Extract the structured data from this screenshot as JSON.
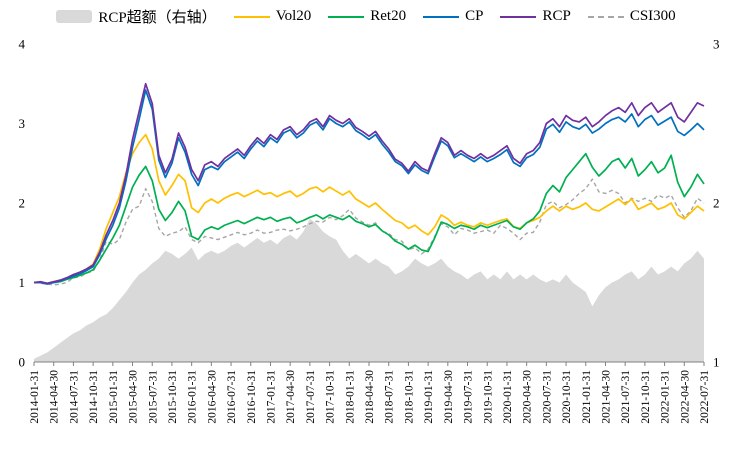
{
  "chart_data": {
    "type": "line",
    "title": "",
    "legend_position": "top",
    "n_points": 103,
    "tick_every": 3,
    "x_ticks": [
      "2014-01-31",
      "2014-04-30",
      "2014-07-31",
      "2014-10-31",
      "2015-01-31",
      "2015-04-30",
      "2015-07-31",
      "2015-10-31",
      "2016-01-31",
      "2016-04-30",
      "2016-07-31",
      "2016-10-31",
      "2017-01-31",
      "2017-04-30",
      "2017-07-31",
      "2017-10-31",
      "2018-01-31",
      "2018-04-30",
      "2018-07-31",
      "2018-10-31",
      "2019-01-31",
      "2019-04-30",
      "2019-07-31",
      "2019-10-31",
      "2020-01-31",
      "2020-04-30",
      "2020-07-31",
      "2020-10-31",
      "2021-01-31",
      "2021-04-30",
      "2021-07-31",
      "2021-10-31",
      "2022-01-31",
      "2022-04-30",
      "2022-07-31"
    ],
    "axes": {
      "left": {
        "min": 0,
        "max": 4,
        "ticks": [
          0,
          1,
          2,
          3,
          4
        ]
      },
      "right": {
        "min": 1,
        "max": 3,
        "ticks": [
          1,
          2,
          3
        ]
      }
    },
    "legend_order": [
      0,
      2,
      3,
      4,
      5,
      1
    ],
    "series": [
      {
        "name": "RCP超额（右轴）",
        "type": "area",
        "axis": "right",
        "color": "#D9D9D9",
        "values": [
          1.02,
          1.04,
          1.06,
          1.09,
          1.12,
          1.15,
          1.18,
          1.2,
          1.23,
          1.25,
          1.28,
          1.3,
          1.34,
          1.39,
          1.44,
          1.5,
          1.55,
          1.58,
          1.62,
          1.65,
          1.7,
          1.68,
          1.65,
          1.68,
          1.72,
          1.64,
          1.68,
          1.7,
          1.68,
          1.7,
          1.73,
          1.75,
          1.72,
          1.75,
          1.78,
          1.75,
          1.77,
          1.74,
          1.78,
          1.8,
          1.77,
          1.82,
          1.9,
          1.87,
          1.82,
          1.79,
          1.77,
          1.7,
          1.65,
          1.68,
          1.65,
          1.62,
          1.65,
          1.62,
          1.6,
          1.55,
          1.57,
          1.6,
          1.65,
          1.62,
          1.6,
          1.62,
          1.65,
          1.6,
          1.57,
          1.55,
          1.52,
          1.55,
          1.57,
          1.52,
          1.55,
          1.52,
          1.57,
          1.52,
          1.55,
          1.52,
          1.55,
          1.52,
          1.5,
          1.52,
          1.5,
          1.55,
          1.5,
          1.47,
          1.44,
          1.35,
          1.42,
          1.47,
          1.5,
          1.52,
          1.55,
          1.57,
          1.52,
          1.55,
          1.6,
          1.55,
          1.57,
          1.6,
          1.57,
          1.62,
          1.65,
          1.7,
          1.65
        ]
      },
      {
        "name": "CSI300",
        "type": "line",
        "axis": "left",
        "color": "#A6A6A6",
        "dash": true,
        "values": [
          1.0,
          0.99,
          0.98,
          0.97,
          0.98,
          1.0,
          1.06,
          1.07,
          1.12,
          1.14,
          1.28,
          1.52,
          1.48,
          1.54,
          1.76,
          1.92,
          1.96,
          2.18,
          2.02,
          1.68,
          1.58,
          1.62,
          1.64,
          1.7,
          1.54,
          1.5,
          1.58,
          1.56,
          1.54,
          1.57,
          1.6,
          1.63,
          1.6,
          1.62,
          1.66,
          1.62,
          1.63,
          1.66,
          1.67,
          1.65,
          1.67,
          1.7,
          1.74,
          1.77,
          1.76,
          1.82,
          1.79,
          1.84,
          1.92,
          1.81,
          1.76,
          1.72,
          1.75,
          1.64,
          1.62,
          1.54,
          1.52,
          1.41,
          1.44,
          1.36,
          1.42,
          1.58,
          1.74,
          1.7,
          1.6,
          1.68,
          1.66,
          1.62,
          1.64,
          1.66,
          1.62,
          1.72,
          1.68,
          1.62,
          1.54,
          1.62,
          1.63,
          1.76,
          1.98,
          2.02,
          1.94,
          1.98,
          2.04,
          2.12,
          2.18,
          2.3,
          2.14,
          2.12,
          2.16,
          2.12,
          2.0,
          2.06,
          2.02,
          2.06,
          2.02,
          2.1,
          2.06,
          2.1,
          1.94,
          1.82,
          1.9,
          2.06,
          2.0
        ]
      },
      {
        "name": "Vol20",
        "type": "line",
        "axis": "left",
        "color": "#FFC000",
        "values": [
          1.0,
          1.0,
          0.99,
          1.01,
          1.02,
          1.05,
          1.09,
          1.13,
          1.17,
          1.23,
          1.42,
          1.68,
          1.88,
          2.08,
          2.38,
          2.62,
          2.76,
          2.86,
          2.68,
          2.28,
          2.1,
          2.22,
          2.36,
          2.28,
          1.94,
          1.88,
          2.0,
          2.05,
          2.0,
          2.06,
          2.1,
          2.13,
          2.08,
          2.12,
          2.16,
          2.11,
          2.13,
          2.08,
          2.12,
          2.15,
          2.08,
          2.12,
          2.18,
          2.2,
          2.14,
          2.2,
          2.15,
          2.1,
          2.15,
          2.05,
          2.0,
          1.95,
          2.0,
          1.92,
          1.85,
          1.78,
          1.75,
          1.68,
          1.72,
          1.65,
          1.6,
          1.7,
          1.85,
          1.8,
          1.72,
          1.76,
          1.72,
          1.7,
          1.75,
          1.72,
          1.75,
          1.78,
          1.8,
          1.7,
          1.68,
          1.75,
          1.78,
          1.82,
          1.9,
          1.96,
          1.9,
          1.96,
          1.92,
          1.95,
          2.0,
          1.92,
          1.9,
          1.95,
          2.0,
          2.05,
          1.98,
          2.05,
          1.92,
          1.96,
          2.0,
          1.92,
          1.95,
          2.0,
          1.85,
          1.8,
          1.88,
          1.96,
          1.9
        ]
      },
      {
        "name": "Ret20",
        "type": "line",
        "axis": "left",
        "color": "#00B050",
        "values": [
          1.0,
          1.0,
          0.99,
          1.0,
          1.01,
          1.04,
          1.06,
          1.09,
          1.12,
          1.16,
          1.28,
          1.42,
          1.56,
          1.72,
          1.96,
          2.2,
          2.35,
          2.46,
          2.28,
          1.92,
          1.78,
          1.88,
          2.02,
          1.9,
          1.58,
          1.54,
          1.66,
          1.7,
          1.67,
          1.72,
          1.75,
          1.78,
          1.74,
          1.78,
          1.82,
          1.79,
          1.82,
          1.77,
          1.8,
          1.82,
          1.75,
          1.78,
          1.82,
          1.85,
          1.8,
          1.85,
          1.82,
          1.79,
          1.84,
          1.77,
          1.74,
          1.7,
          1.73,
          1.65,
          1.6,
          1.52,
          1.48,
          1.42,
          1.47,
          1.41,
          1.39,
          1.56,
          1.76,
          1.73,
          1.68,
          1.72,
          1.7,
          1.67,
          1.72,
          1.69,
          1.72,
          1.75,
          1.78,
          1.7,
          1.67,
          1.75,
          1.8,
          1.9,
          2.12,
          2.22,
          2.14,
          2.32,
          2.42,
          2.52,
          2.62,
          2.45,
          2.34,
          2.42,
          2.52,
          2.56,
          2.44,
          2.56,
          2.34,
          2.42,
          2.52,
          2.38,
          2.44,
          2.6,
          2.26,
          2.08,
          2.2,
          2.36,
          2.24
        ]
      },
      {
        "name": "CP",
        "type": "line",
        "axis": "left",
        "color": "#0070C0",
        "values": [
          1.0,
          1.0,
          0.98,
          1.0,
          1.02,
          1.05,
          1.08,
          1.11,
          1.15,
          1.2,
          1.35,
          1.55,
          1.72,
          1.94,
          2.28,
          2.7,
          3.05,
          3.42,
          3.18,
          2.54,
          2.32,
          2.5,
          2.82,
          2.64,
          2.36,
          2.22,
          2.42,
          2.46,
          2.42,
          2.52,
          2.58,
          2.64,
          2.56,
          2.68,
          2.78,
          2.71,
          2.82,
          2.76,
          2.88,
          2.92,
          2.82,
          2.88,
          2.98,
          3.02,
          2.92,
          3.06,
          3.0,
          2.96,
          3.02,
          2.91,
          2.86,
          2.8,
          2.86,
          2.74,
          2.64,
          2.52,
          2.47,
          2.37,
          2.48,
          2.41,
          2.37,
          2.58,
          2.78,
          2.72,
          2.57,
          2.62,
          2.57,
          2.52,
          2.58,
          2.52,
          2.56,
          2.61,
          2.67,
          2.51,
          2.46,
          2.57,
          2.61,
          2.7,
          2.93,
          2.99,
          2.89,
          3.02,
          2.96,
          2.93,
          2.99,
          2.88,
          2.93,
          3.0,
          3.05,
          3.08,
          3.02,
          3.12,
          2.96,
          3.05,
          3.1,
          2.98,
          3.03,
          3.08,
          2.9,
          2.85,
          2.92,
          3.0,
          2.92
        ]
      },
      {
        "name": "RCP",
        "type": "line",
        "axis": "left",
        "color": "#7030A0",
        "values": [
          1.0,
          1.01,
          0.99,
          1.01,
          1.03,
          1.06,
          1.1,
          1.13,
          1.17,
          1.22,
          1.38,
          1.6,
          1.78,
          2.0,
          2.35,
          2.8,
          3.15,
          3.5,
          3.25,
          2.6,
          2.38,
          2.55,
          2.88,
          2.7,
          2.42,
          2.28,
          2.48,
          2.52,
          2.46,
          2.56,
          2.62,
          2.68,
          2.6,
          2.72,
          2.82,
          2.75,
          2.86,
          2.8,
          2.92,
          2.96,
          2.86,
          2.92,
          3.02,
          3.06,
          2.96,
          3.1,
          3.04,
          3.0,
          3.06,
          2.95,
          2.9,
          2.84,
          2.9,
          2.78,
          2.68,
          2.55,
          2.5,
          2.4,
          2.52,
          2.44,
          2.4,
          2.62,
          2.82,
          2.76,
          2.6,
          2.66,
          2.6,
          2.56,
          2.62,
          2.56,
          2.6,
          2.66,
          2.72,
          2.56,
          2.5,
          2.62,
          2.66,
          2.76,
          3.0,
          3.06,
          2.96,
          3.1,
          3.04,
          3.02,
          3.08,
          2.96,
          3.02,
          3.1,
          3.16,
          3.2,
          3.14,
          3.26,
          3.1,
          3.2,
          3.26,
          3.14,
          3.2,
          3.26,
          3.08,
          3.02,
          3.14,
          3.26,
          3.22
        ]
      }
    ]
  }
}
